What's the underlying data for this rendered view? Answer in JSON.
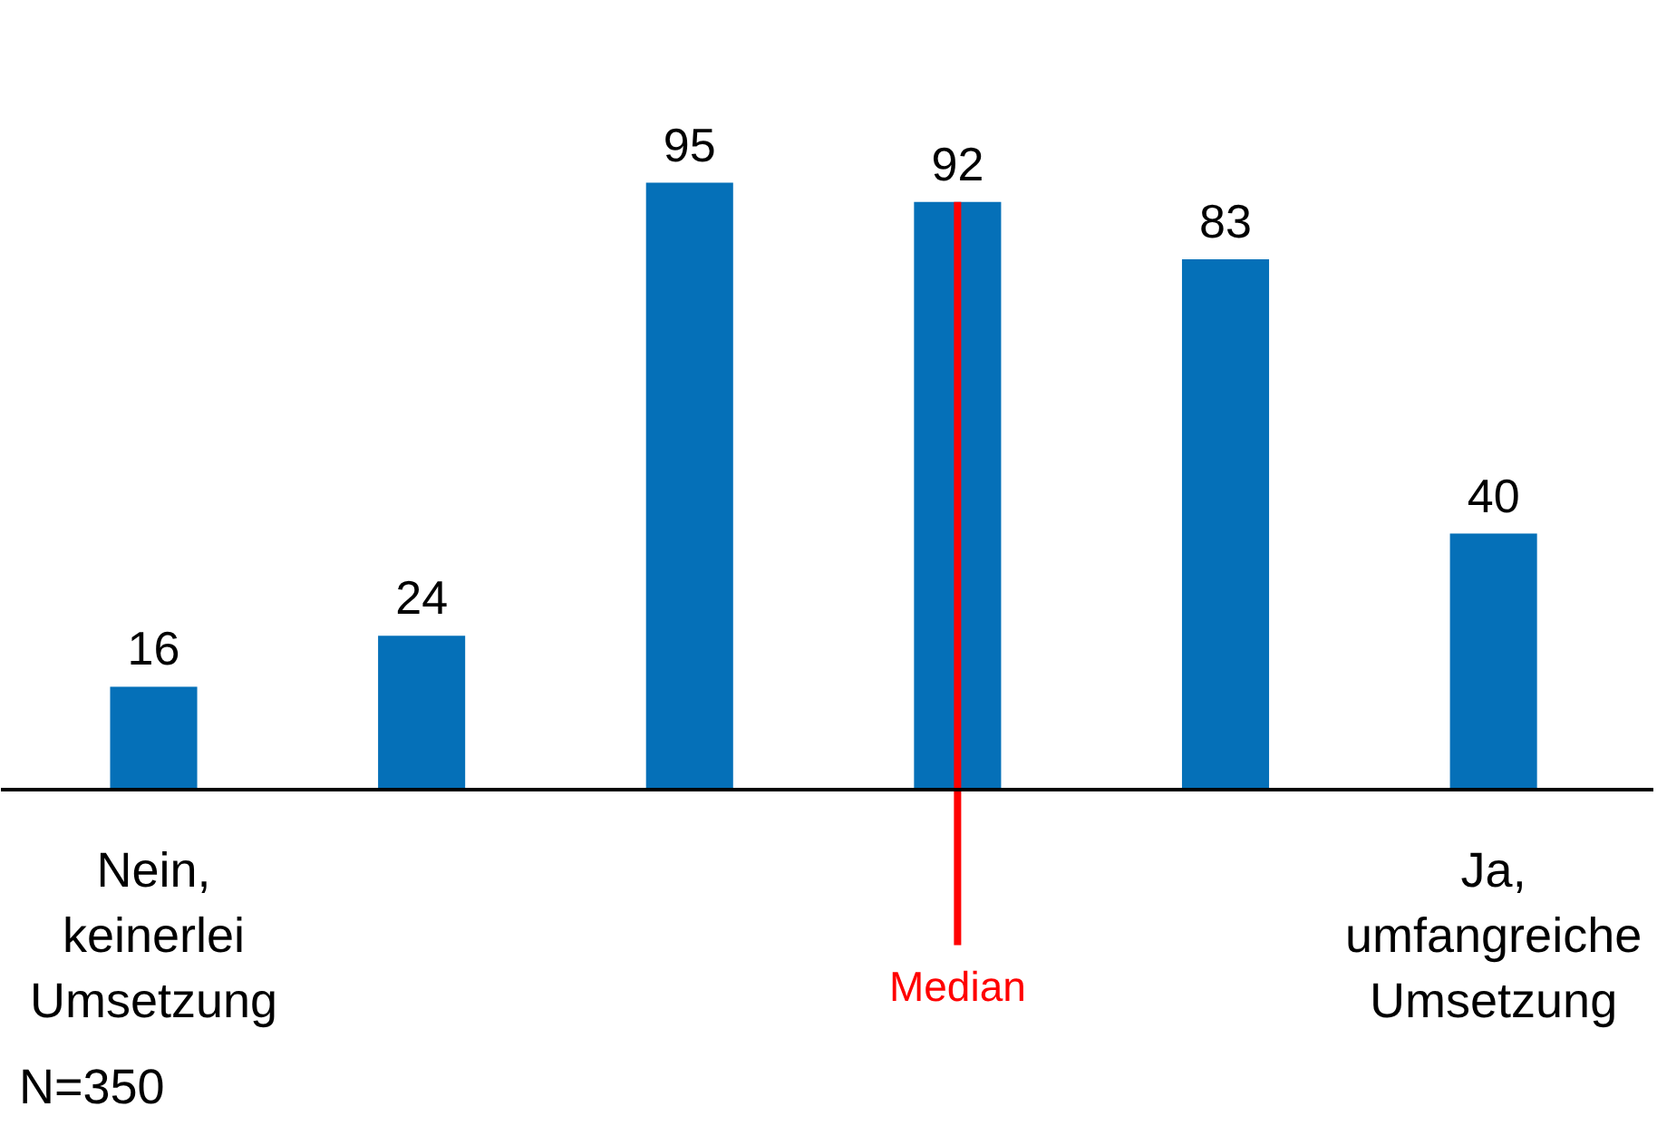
{
  "chart_data": {
    "type": "bar",
    "categories": [
      "Nein,\nkeinerlei\nUmsetzung",
      null,
      null,
      null,
      null,
      "Ja,\numfangreiche\nUmsetzung"
    ],
    "values": [
      16,
      24,
      95,
      92,
      83,
      40
    ],
    "color": "#0570b8",
    "data_labels": true,
    "annotations": [
      "Median",
      "N=350"
    ]
  }
}
